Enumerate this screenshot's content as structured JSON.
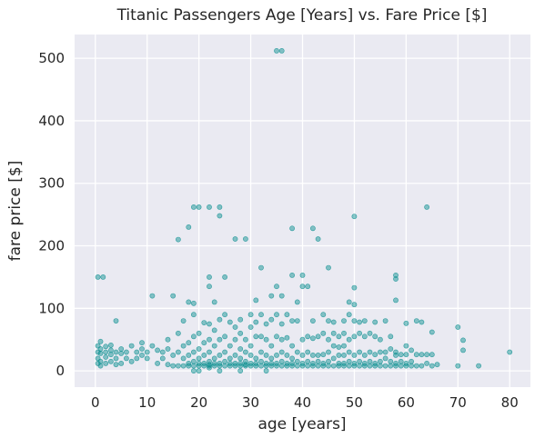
{
  "chart_data": {
    "type": "scatter",
    "title": "Titanic Passengers Age [Years] vs. Fare Price [$]",
    "xlabel": "age [years]",
    "ylabel": "fare price [$]",
    "xlim": [
      -4,
      84
    ],
    "ylim": [
      -26,
      538
    ],
    "xticks": [
      0,
      10,
      20,
      30,
      40,
      50,
      60,
      70,
      80
    ],
    "yticks": [
      0,
      100,
      200,
      300,
      400,
      500
    ],
    "grid": true,
    "legend": "none",
    "background_color": "#eaeaf2",
    "marker_color": "#008b8b",
    "marker_alpha": 0.45,
    "points": [
      [
        0.5,
        12
      ],
      [
        0.5,
        20
      ],
      [
        0.5,
        30
      ],
      [
        0.5,
        40
      ],
      [
        0.5,
        150
      ],
      [
        1,
        8
      ],
      [
        1,
        15
      ],
      [
        1,
        28
      ],
      [
        1,
        35
      ],
      [
        1,
        47
      ],
      [
        1.5,
        150
      ],
      [
        2,
        12
      ],
      [
        2,
        22
      ],
      [
        2,
        30
      ],
      [
        2,
        39
      ],
      [
        3,
        15
      ],
      [
        3,
        26
      ],
      [
        3,
        33
      ],
      [
        3,
        41
      ],
      [
        4,
        10
      ],
      [
        4,
        20
      ],
      [
        4,
        30
      ],
      [
        4,
        80
      ],
      [
        5,
        12
      ],
      [
        5,
        28
      ],
      [
        5,
        35
      ],
      [
        6,
        20
      ],
      [
        6,
        30
      ],
      [
        7,
        15
      ],
      [
        7,
        40
      ],
      [
        8,
        20
      ],
      [
        8,
        30
      ],
      [
        9,
        25
      ],
      [
        9,
        35
      ],
      [
        9,
        45
      ],
      [
        10,
        20
      ],
      [
        10,
        30
      ],
      [
        11,
        40
      ],
      [
        11,
        120
      ],
      [
        12,
        12
      ],
      [
        12,
        33
      ],
      [
        13,
        20
      ],
      [
        13,
        30
      ],
      [
        14,
        10
      ],
      [
        14,
        35
      ],
      [
        14,
        50
      ],
      [
        15,
        8
      ],
      [
        15,
        25
      ],
      [
        15,
        120
      ],
      [
        16,
        8
      ],
      [
        16,
        30
      ],
      [
        16,
        60
      ],
      [
        16,
        210
      ],
      [
        17,
        8
      ],
      [
        17,
        20
      ],
      [
        17,
        40
      ],
      [
        17,
        80
      ],
      [
        18,
        8
      ],
      [
        18,
        12
      ],
      [
        18,
        25
      ],
      [
        18,
        45
      ],
      [
        18,
        110
      ],
      [
        18,
        230
      ],
      [
        19,
        0
      ],
      [
        19,
        8
      ],
      [
        19,
        15
      ],
      [
        19,
        30
      ],
      [
        19,
        55
      ],
      [
        19,
        90
      ],
      [
        19,
        108
      ],
      [
        19,
        262
      ],
      [
        20,
        0
      ],
      [
        20,
        8
      ],
      [
        20,
        12
      ],
      [
        20,
        20
      ],
      [
        20,
        35
      ],
      [
        20,
        60
      ],
      [
        20,
        262
      ],
      [
        21,
        8
      ],
      [
        21,
        12
      ],
      [
        21,
        25
      ],
      [
        21,
        45
      ],
      [
        21,
        77
      ],
      [
        22,
        5
      ],
      [
        22,
        8
      ],
      [
        22,
        10
      ],
      [
        22,
        15
      ],
      [
        22,
        30
      ],
      [
        22,
        50
      ],
      [
        22,
        75
      ],
      [
        22,
        135
      ],
      [
        22,
        150
      ],
      [
        22,
        262
      ],
      [
        23,
        8
      ],
      [
        23,
        12
      ],
      [
        23,
        20
      ],
      [
        23,
        40
      ],
      [
        23,
        65
      ],
      [
        23,
        110
      ],
      [
        24,
        0
      ],
      [
        24,
        8
      ],
      [
        24,
        12
      ],
      [
        24,
        25
      ],
      [
        24,
        50
      ],
      [
        24,
        82
      ],
      [
        24,
        248
      ],
      [
        24,
        262
      ],
      [
        25,
        8
      ],
      [
        25,
        15
      ],
      [
        25,
        30
      ],
      [
        25,
        55
      ],
      [
        25,
        90
      ],
      [
        25,
        150
      ],
      [
        26,
        8
      ],
      [
        26,
        12
      ],
      [
        26,
        20
      ],
      [
        26,
        40
      ],
      [
        26,
        78
      ],
      [
        27,
        8
      ],
      [
        27,
        12
      ],
      [
        27,
        25
      ],
      [
        27,
        50
      ],
      [
        27,
        70
      ],
      [
        27,
        211
      ],
      [
        28,
        0
      ],
      [
        28,
        8
      ],
      [
        28,
        12
      ],
      [
        28,
        20
      ],
      [
        28,
        35
      ],
      [
        28,
        60
      ],
      [
        28,
        82
      ],
      [
        29,
        8
      ],
      [
        29,
        10
      ],
      [
        29,
        15
      ],
      [
        29,
        30
      ],
      [
        29,
        50
      ],
      [
        29,
        211
      ],
      [
        30,
        8
      ],
      [
        30,
        12
      ],
      [
        30,
        25
      ],
      [
        30,
        40
      ],
      [
        30,
        70
      ],
      [
        30,
        90
      ],
      [
        31,
        8
      ],
      [
        31,
        12
      ],
      [
        31,
        20
      ],
      [
        31,
        55
      ],
      [
        31,
        78
      ],
      [
        31,
        113
      ],
      [
        32,
        8
      ],
      [
        32,
        15
      ],
      [
        32,
        30
      ],
      [
        32,
        55
      ],
      [
        32,
        90
      ],
      [
        32,
        165
      ],
      [
        33,
        0
      ],
      [
        33,
        8
      ],
      [
        33,
        12
      ],
      [
        33,
        25
      ],
      [
        33,
        50
      ],
      [
        33,
        75
      ],
      [
        34,
        8
      ],
      [
        34,
        12
      ],
      [
        34,
        20
      ],
      [
        34,
        40
      ],
      [
        34,
        82
      ],
      [
        34,
        120
      ],
      [
        35,
        8
      ],
      [
        35,
        12
      ],
      [
        35,
        25
      ],
      [
        35,
        55
      ],
      [
        35,
        90
      ],
      [
        35,
        135
      ],
      [
        35,
        512
      ],
      [
        36,
        8
      ],
      [
        36,
        15
      ],
      [
        36,
        30
      ],
      [
        36,
        50
      ],
      [
        36,
        75
      ],
      [
        36,
        120
      ],
      [
        36,
        512
      ],
      [
        37,
        8
      ],
      [
        37,
        12
      ],
      [
        37,
        25
      ],
      [
        37,
        53
      ],
      [
        37,
        90
      ],
      [
        38,
        8
      ],
      [
        38,
        12
      ],
      [
        38,
        20
      ],
      [
        38,
        40
      ],
      [
        38,
        80
      ],
      [
        38,
        153
      ],
      [
        38,
        228
      ],
      [
        39,
        8
      ],
      [
        39,
        15
      ],
      [
        39,
        30
      ],
      [
        39,
        80
      ],
      [
        39,
        110
      ],
      [
        40,
        8
      ],
      [
        40,
        12
      ],
      [
        40,
        25
      ],
      [
        40,
        50
      ],
      [
        40,
        135
      ],
      [
        40,
        153
      ],
      [
        41,
        8
      ],
      [
        41,
        15
      ],
      [
        41,
        30
      ],
      [
        41,
        55
      ],
      [
        41,
        135
      ],
      [
        42,
        8
      ],
      [
        42,
        12
      ],
      [
        42,
        25
      ],
      [
        42,
        52
      ],
      [
        42,
        80
      ],
      [
        42,
        228
      ],
      [
        43,
        8
      ],
      [
        43,
        15
      ],
      [
        43,
        25
      ],
      [
        43,
        55
      ],
      [
        43,
        211
      ],
      [
        44,
        8
      ],
      [
        44,
        12
      ],
      [
        44,
        26
      ],
      [
        44,
        60
      ],
      [
        44,
        90
      ],
      [
        45,
        8
      ],
      [
        45,
        15
      ],
      [
        45,
        30
      ],
      [
        45,
        50
      ],
      [
        45,
        80
      ],
      [
        45,
        165
      ],
      [
        46,
        8
      ],
      [
        46,
        20
      ],
      [
        46,
        40
      ],
      [
        46,
        60
      ],
      [
        46,
        78
      ],
      [
        47,
        8
      ],
      [
        47,
        12
      ],
      [
        47,
        25
      ],
      [
        47,
        38
      ],
      [
        47,
        55
      ],
      [
        48,
        8
      ],
      [
        48,
        12
      ],
      [
        48,
        25
      ],
      [
        48,
        40
      ],
      [
        48,
        60
      ],
      [
        48,
        80
      ],
      [
        49,
        8
      ],
      [
        49,
        15
      ],
      [
        49,
        30
      ],
      [
        49,
        50
      ],
      [
        49,
        90
      ],
      [
        49,
        110
      ],
      [
        50,
        8
      ],
      [
        50,
        12
      ],
      [
        50,
        25
      ],
      [
        50,
        55
      ],
      [
        50,
        80
      ],
      [
        50,
        106
      ],
      [
        50,
        133
      ],
      [
        50,
        247
      ],
      [
        51,
        8
      ],
      [
        51,
        15
      ],
      [
        51,
        30
      ],
      [
        51,
        60
      ],
      [
        51,
        78
      ],
      [
        52,
        8
      ],
      [
        52,
        12
      ],
      [
        52,
        25
      ],
      [
        52,
        55
      ],
      [
        52,
        80
      ],
      [
        53,
        8
      ],
      [
        53,
        15
      ],
      [
        53,
        30
      ],
      [
        53,
        60
      ],
      [
        54,
        8
      ],
      [
        54,
        12
      ],
      [
        54,
        26
      ],
      [
        54,
        55
      ],
      [
        54,
        78
      ],
      [
        55,
        8
      ],
      [
        55,
        15
      ],
      [
        55,
        30
      ],
      [
        55,
        50
      ],
      [
        56,
        8
      ],
      [
        56,
        20
      ],
      [
        56,
        30
      ],
      [
        56,
        80
      ],
      [
        57,
        8
      ],
      [
        57,
        15
      ],
      [
        57,
        35
      ],
      [
        57,
        55
      ],
      [
        58,
        8
      ],
      [
        58,
        12
      ],
      [
        58,
        25
      ],
      [
        58,
        30
      ],
      [
        58,
        113
      ],
      [
        58,
        147
      ],
      [
        58,
        153
      ],
      [
        59,
        8
      ],
      [
        59,
        15
      ],
      [
        59,
        26
      ],
      [
        60,
        8
      ],
      [
        60,
        12
      ],
      [
        60,
        26
      ],
      [
        60,
        40
      ],
      [
        60,
        76
      ],
      [
        61,
        8
      ],
      [
        61,
        15
      ],
      [
        61,
        33
      ],
      [
        62,
        8
      ],
      [
        62,
        26
      ],
      [
        62,
        80
      ],
      [
        63,
        8
      ],
      [
        63,
        26
      ],
      [
        63,
        78
      ],
      [
        64,
        12
      ],
      [
        64,
        26
      ],
      [
        64,
        262
      ],
      [
        65,
        8
      ],
      [
        65,
        26
      ],
      [
        65,
        62
      ],
      [
        66,
        10
      ],
      [
        70,
        8
      ],
      [
        70,
        70
      ],
      [
        71,
        33
      ],
      [
        71,
        49
      ],
      [
        74,
        8
      ],
      [
        80,
        30
      ]
    ]
  }
}
